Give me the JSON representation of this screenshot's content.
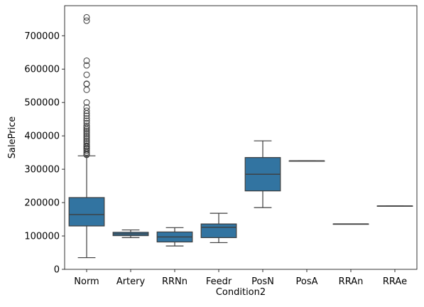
{
  "chart_data": {
    "type": "box",
    "xlabel": "Condition2",
    "ylabel": "SalePrice",
    "ylim": [
      0,
      790000
    ],
    "yticks": [
      0,
      100000,
      200000,
      300000,
      400000,
      500000,
      600000,
      700000
    ],
    "ytick_labels": [
      "0",
      "100000",
      "200000",
      "300000",
      "400000",
      "500000",
      "600000",
      "700000"
    ],
    "color": "#3274a1",
    "grid": false,
    "categories": [
      "Norm",
      "Artery",
      "RRNn",
      "Feedr",
      "PosN",
      "PosA",
      "RRAn",
      "RRAe"
    ],
    "boxes": [
      {
        "category": "Norm",
        "whislo": 35000,
        "q1": 130000,
        "median": 164000,
        "q3": 215000,
        "whishi": 340000,
        "fliers": [
          343000,
          345000,
          350000,
          355000,
          360000,
          363000,
          367000,
          370000,
          375000,
          380000,
          385000,
          390000,
          395000,
          400000,
          405000,
          410000,
          415000,
          420000,
          425000,
          430000,
          438000,
          445000,
          452000,
          460000,
          467000,
          475000,
          485000,
          500000,
          538000,
          555000,
          556000,
          583000,
          611000,
          625000,
          745000,
          755000
        ]
      },
      {
        "category": "Artery",
        "whislo": 95000,
        "q1": 101000,
        "median": 106000,
        "q3": 111000,
        "whishi": 118000,
        "fliers": []
      },
      {
        "category": "RRNn",
        "whislo": 70000,
        "q1": 82000,
        "median": 97000,
        "q3": 112000,
        "whishi": 125000,
        "fliers": []
      },
      {
        "category": "Feedr",
        "whislo": 80000,
        "q1": 95000,
        "median": 126000,
        "q3": 136000,
        "whishi": 168000,
        "fliers": []
      },
      {
        "category": "PosN",
        "whislo": 185000,
        "q1": 235000,
        "median": 285000,
        "q3": 335000,
        "whishi": 385000,
        "fliers": []
      },
      {
        "category": "PosA",
        "whislo": 325000,
        "q1": 325000,
        "median": 325000,
        "q3": 325000,
        "whishi": 325000,
        "fliers": []
      },
      {
        "category": "RRAn",
        "whislo": 136000,
        "q1": 136000,
        "median": 136000,
        "q3": 136000,
        "whishi": 136000,
        "fliers": []
      },
      {
        "category": "RRAe",
        "whislo": 190000,
        "q1": 190000,
        "median": 190000,
        "q3": 190000,
        "whishi": 190000,
        "fliers": []
      }
    ]
  }
}
